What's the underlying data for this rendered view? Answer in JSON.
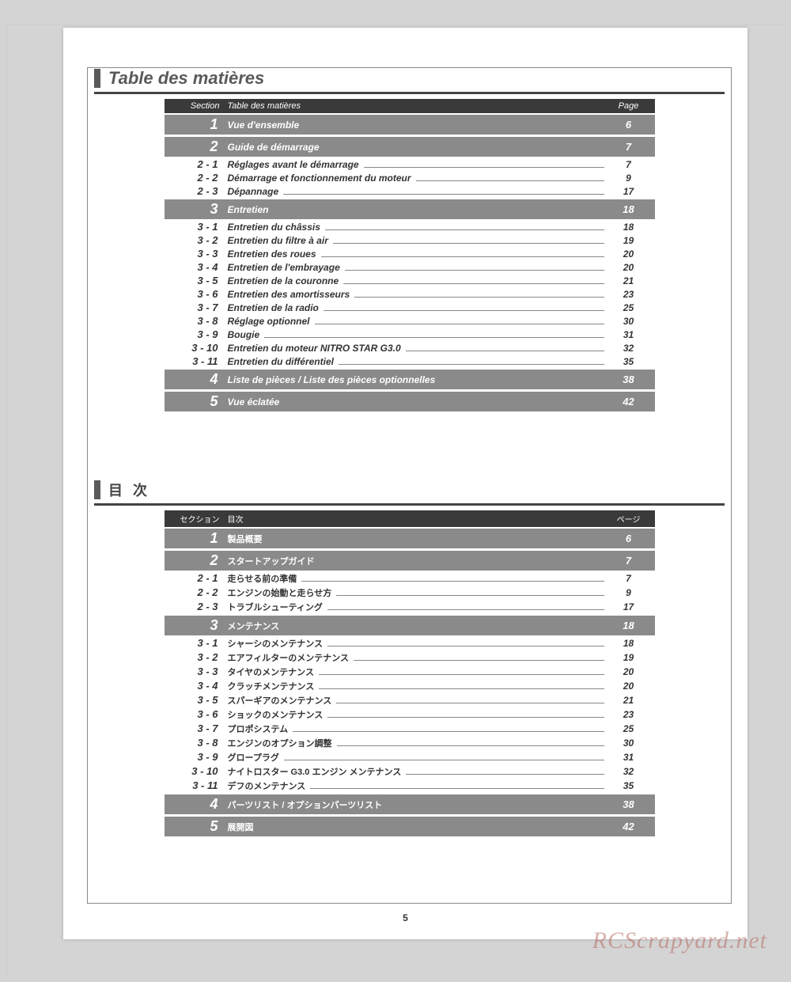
{
  "pageNumber": "5",
  "watermark": "RCScrapyard.net",
  "french": {
    "title": "Table des matières",
    "headers": {
      "section": "Section",
      "title": "Table des matières",
      "page": "Page"
    },
    "rows": [
      {
        "type": "section",
        "num": "1",
        "title": "Vue d'ensemble",
        "page": "6"
      },
      {
        "type": "section",
        "num": "2",
        "title": "Guide de démarrage",
        "page": "7"
      },
      {
        "type": "sub",
        "num": "2 - 1",
        "title": "Réglages avant le démarrage",
        "page": "7"
      },
      {
        "type": "sub",
        "num": "2 - 2",
        "title": "Démarrage et fonctionnement du moteur",
        "page": "9"
      },
      {
        "type": "sub",
        "num": "2 - 3",
        "title": "Dépannage",
        "page": "17"
      },
      {
        "type": "section",
        "num": "3",
        "title": "Entretien",
        "page": "18"
      },
      {
        "type": "sub",
        "num": "3 - 1",
        "title": "Entretien du châssis",
        "page": "18"
      },
      {
        "type": "sub",
        "num": "3 - 2",
        "title": "Entretien du filtre à air",
        "page": "19"
      },
      {
        "type": "sub",
        "num": "3 - 3",
        "title": "Entretien des roues",
        "page": "20"
      },
      {
        "type": "sub",
        "num": "3 - 4",
        "title": "Entretien de l'embrayage",
        "page": "20"
      },
      {
        "type": "sub",
        "num": "3 - 5",
        "title": "Entretien de la couronne",
        "page": "21"
      },
      {
        "type": "sub",
        "num": "3 - 6",
        "title": "Entretien des amortisseurs",
        "page": "23"
      },
      {
        "type": "sub",
        "num": "3 - 7",
        "title": "Entretien de la radio",
        "page": "25"
      },
      {
        "type": "sub",
        "num": "3 - 8",
        "title": "Réglage optionnel",
        "page": "30"
      },
      {
        "type": "sub",
        "num": "3 - 9",
        "title": "Bougie",
        "page": "31"
      },
      {
        "type": "sub",
        "num": "3 - 10",
        "title": "Entretien du moteur NITRO STAR G3.0",
        "page": "32"
      },
      {
        "type": "sub",
        "num": "3 - 11",
        "title": "Entretien du différentiel",
        "page": "35"
      },
      {
        "type": "section",
        "num": "4",
        "title": "Liste de pièces / Liste des pièces optionnelles",
        "page": "38"
      },
      {
        "type": "section",
        "num": "5",
        "title": "Vue éclatée",
        "page": "42"
      }
    ]
  },
  "japanese": {
    "title": "目 次",
    "headers": {
      "section": "セクション",
      "title": "目次",
      "page": "ページ"
    },
    "rows": [
      {
        "type": "section",
        "num": "1",
        "title": "製品概要",
        "page": "6"
      },
      {
        "type": "section",
        "num": "2",
        "title": "スタートアップガイド",
        "page": "7"
      },
      {
        "type": "sub",
        "num": "2 - 1",
        "title": "走らせる前の準備",
        "page": "7"
      },
      {
        "type": "sub",
        "num": "2 - 2",
        "title": "エンジンの始動と走らせ方",
        "page": "9"
      },
      {
        "type": "sub",
        "num": "2 - 3",
        "title": "トラブルシューティング",
        "page": "17"
      },
      {
        "type": "section",
        "num": "3",
        "title": "メンテナンス",
        "page": "18"
      },
      {
        "type": "sub",
        "num": "3 - 1",
        "title": "シャーシのメンテナンス",
        "page": "18"
      },
      {
        "type": "sub",
        "num": "3 - 2",
        "title": "エアフィルターのメンテナンス",
        "page": "19"
      },
      {
        "type": "sub",
        "num": "3 - 3",
        "title": "タイヤのメンテナンス",
        "page": "20"
      },
      {
        "type": "sub",
        "num": "3 - 4",
        "title": "クラッチメンテナンス",
        "page": "20"
      },
      {
        "type": "sub",
        "num": "3 - 5",
        "title": "スパーギアのメンテナンス",
        "page": "21"
      },
      {
        "type": "sub",
        "num": "3 - 6",
        "title": "ショックのメンテナンス",
        "page": "23"
      },
      {
        "type": "sub",
        "num": "3 - 7",
        "title": "プロポシステム",
        "page": "25"
      },
      {
        "type": "sub",
        "num": "3 - 8",
        "title": "エンジンのオプション調整",
        "page": "30"
      },
      {
        "type": "sub",
        "num": "3 - 9",
        "title": "グロープラグ",
        "page": "31"
      },
      {
        "type": "sub",
        "num": "3 - 10",
        "title": "ナイトロスター G3.0 エンジン メンテナンス",
        "page": "32"
      },
      {
        "type": "sub",
        "num": "3 - 11",
        "title": "デフのメンテナンス",
        "page": "35"
      },
      {
        "type": "section",
        "num": "4",
        "title": "パーツリスト / オプションパーツリスト",
        "page": "38"
      },
      {
        "type": "section",
        "num": "5",
        "title": "展開図",
        "page": "42"
      }
    ]
  }
}
